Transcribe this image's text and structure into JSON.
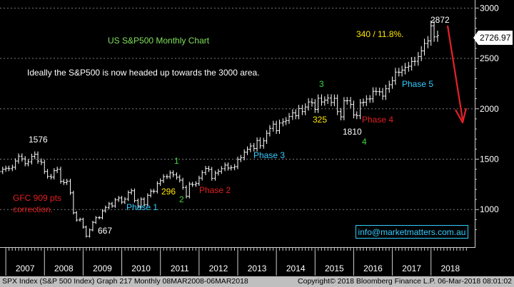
{
  "chart_data": {
    "type": "ohlc",
    "title": "US S&P500 Monthly Chart",
    "subtitle": "Ideally the S&P500 is now headed up towards the 3000 area.",
    "ylim": [
      620,
      3080
    ],
    "yticks": [
      "1000",
      "1500",
      "2000",
      "2500",
      "3000"
    ],
    "ytick_values": [
      1000,
      1500,
      2000,
      2500,
      3000
    ],
    "xlim": [
      2006.85,
      2019.15
    ],
    "year_labels": [
      "2007",
      "2008",
      "2009",
      "2010",
      "2011",
      "2012",
      "2013",
      "2014",
      "2015",
      "2016",
      "2017",
      "2018"
    ],
    "last_price": "2726.97",
    "series": [
      {
        "values": [
          [
            2006.75,
            1345
          ],
          [
            2006.83,
            1377
          ],
          [
            2006.92,
            1400
          ],
          [
            2007.0,
            1410
          ],
          [
            2007.08,
            1406
          ],
          [
            2007.17,
            1420
          ],
          [
            2007.25,
            1482
          ],
          [
            2007.33,
            1530
          ],
          [
            2007.42,
            1503
          ],
          [
            2007.5,
            1455
          ],
          [
            2007.58,
            1474
          ],
          [
            2007.67,
            1527
          ],
          [
            2007.75,
            1549
          ],
          [
            2007.83,
            1481
          ],
          [
            2007.92,
            1468
          ],
          [
            2008.0,
            1378
          ],
          [
            2008.08,
            1330
          ],
          [
            2008.17,
            1322
          ],
          [
            2008.25,
            1386
          ],
          [
            2008.33,
            1400
          ],
          [
            2008.42,
            1280
          ],
          [
            2008.5,
            1267
          ],
          [
            2008.58,
            1282
          ],
          [
            2008.67,
            1166
          ],
          [
            2008.75,
            968
          ],
          [
            2008.83,
            896
          ],
          [
            2008.92,
            903
          ],
          [
            2009.0,
            826
          ],
          [
            2009.08,
            735
          ],
          [
            2009.17,
            798
          ],
          [
            2009.25,
            873
          ],
          [
            2009.33,
            919
          ],
          [
            2009.42,
            919
          ],
          [
            2009.5,
            987
          ],
          [
            2009.58,
            1021
          ],
          [
            2009.67,
            1057
          ],
          [
            2009.75,
            1036
          ],
          [
            2009.83,
            1096
          ],
          [
            2009.92,
            1115
          ],
          [
            2010.0,
            1074
          ],
          [
            2010.08,
            1104
          ],
          [
            2010.17,
            1169
          ],
          [
            2010.25,
            1187
          ],
          [
            2010.33,
            1089
          ],
          [
            2010.42,
            1031
          ],
          [
            2010.5,
            1102
          ],
          [
            2010.58,
            1049
          ],
          [
            2010.67,
            1141
          ],
          [
            2010.75,
            1183
          ],
          [
            2010.83,
            1181
          ],
          [
            2010.92,
            1258
          ],
          [
            2011.0,
            1286
          ],
          [
            2011.08,
            1327
          ],
          [
            2011.17,
            1326
          ],
          [
            2011.25,
            1364
          ],
          [
            2011.33,
            1345
          ],
          [
            2011.42,
            1321
          ],
          [
            2011.5,
            1292
          ],
          [
            2011.58,
            1219
          ],
          [
            2011.67,
            1131
          ],
          [
            2011.75,
            1253
          ],
          [
            2011.83,
            1247
          ],
          [
            2011.92,
            1258
          ],
          [
            2012.0,
            1312
          ],
          [
            2012.08,
            1366
          ],
          [
            2012.17,
            1408
          ],
          [
            2012.25,
            1398
          ],
          [
            2012.33,
            1310
          ],
          [
            2012.42,
            1362
          ],
          [
            2012.5,
            1379
          ],
          [
            2012.58,
            1406
          ],
          [
            2012.67,
            1441
          ],
          [
            2012.75,
            1412
          ],
          [
            2012.83,
            1416
          ],
          [
            2012.92,
            1426
          ],
          [
            2013.0,
            1498
          ],
          [
            2013.08,
            1515
          ],
          [
            2013.17,
            1569
          ],
          [
            2013.25,
            1598
          ],
          [
            2013.33,
            1631
          ],
          [
            2013.42,
            1606
          ],
          [
            2013.5,
            1686
          ],
          [
            2013.58,
            1633
          ],
          [
            2013.67,
            1682
          ],
          [
            2013.75,
            1757
          ],
          [
            2013.83,
            1806
          ],
          [
            2013.92,
            1848
          ],
          [
            2014.0,
            1783
          ],
          [
            2014.08,
            1859
          ],
          [
            2014.17,
            1872
          ],
          [
            2014.25,
            1884
          ],
          [
            2014.33,
            1924
          ],
          [
            2014.42,
            1960
          ],
          [
            2014.5,
            1931
          ],
          [
            2014.58,
            2003
          ],
          [
            2014.67,
            1972
          ],
          [
            2014.75,
            2018
          ],
          [
            2014.83,
            2068
          ],
          [
            2014.92,
            2059
          ],
          [
            2015.0,
            1995
          ],
          [
            2015.08,
            2105
          ],
          [
            2015.17,
            2068
          ],
          [
            2015.25,
            2086
          ],
          [
            2015.33,
            2107
          ],
          [
            2015.42,
            2063
          ],
          [
            2015.5,
            2104
          ],
          [
            2015.58,
            1972
          ],
          [
            2015.67,
            1920
          ],
          [
            2015.75,
            2079
          ],
          [
            2015.83,
            2080
          ],
          [
            2015.92,
            2044
          ],
          [
            2016.0,
            1940
          ],
          [
            2016.08,
            1932
          ],
          [
            2016.17,
            2060
          ],
          [
            2016.25,
            2065
          ],
          [
            2016.33,
            2097
          ],
          [
            2016.42,
            2099
          ],
          [
            2016.5,
            2174
          ],
          [
            2016.58,
            2171
          ],
          [
            2016.67,
            2168
          ],
          [
            2016.75,
            2126
          ],
          [
            2016.83,
            2199
          ],
          [
            2016.92,
            2239
          ],
          [
            2017.0,
            2279
          ],
          [
            2017.08,
            2364
          ],
          [
            2017.17,
            2363
          ],
          [
            2017.25,
            2384
          ],
          [
            2017.33,
            2412
          ],
          [
            2017.42,
            2423
          ],
          [
            2017.5,
            2470
          ],
          [
            2017.58,
            2472
          ],
          [
            2017.67,
            2519
          ],
          [
            2017.75,
            2575
          ],
          [
            2017.83,
            2648
          ],
          [
            2017.92,
            2674
          ],
          [
            2018.0,
            2824
          ],
          [
            2018.08,
            2714
          ],
          [
            2018.17,
            2727
          ]
        ]
      }
    ]
  },
  "annotations": {
    "peak_2007": "1576",
    "gfc_text": "GFC 909 pts\ncorrection.",
    "low_2009": "667",
    "phase1": "Phase 1",
    "wave1": "1",
    "wave2": "2",
    "pts296": "296",
    "phase2": "Phase 2",
    "phase3": "Phase 3",
    "wave3": "3",
    "pts325": "325",
    "low_1810": "1810",
    "wave4": "4",
    "phase4": "Phase 4",
    "phase5": "Phase 5",
    "pts340": "340 / 11.8%.",
    "peak_2872": "2872"
  },
  "email": "info@marketmatters.com.au",
  "footer": {
    "left": "SPX Index (S&P 500 Index) Graph 217  Monthly 08MAR2008-06MAR2018",
    "right": "Copyright© 2018 Bloomberg Finance L.P.    06-Mar-2018 08:01:02"
  },
  "colors": {
    "background": "#000000",
    "bars": "#ffffff",
    "grid": "#7a7a7a",
    "title": "#7ee05a",
    "phase_cyan": "#33ccff",
    "phase_red": "#e32020",
    "wave_green": "#3ad83a",
    "points_yellow": "#ffe600",
    "arrow": "#e8202a"
  }
}
